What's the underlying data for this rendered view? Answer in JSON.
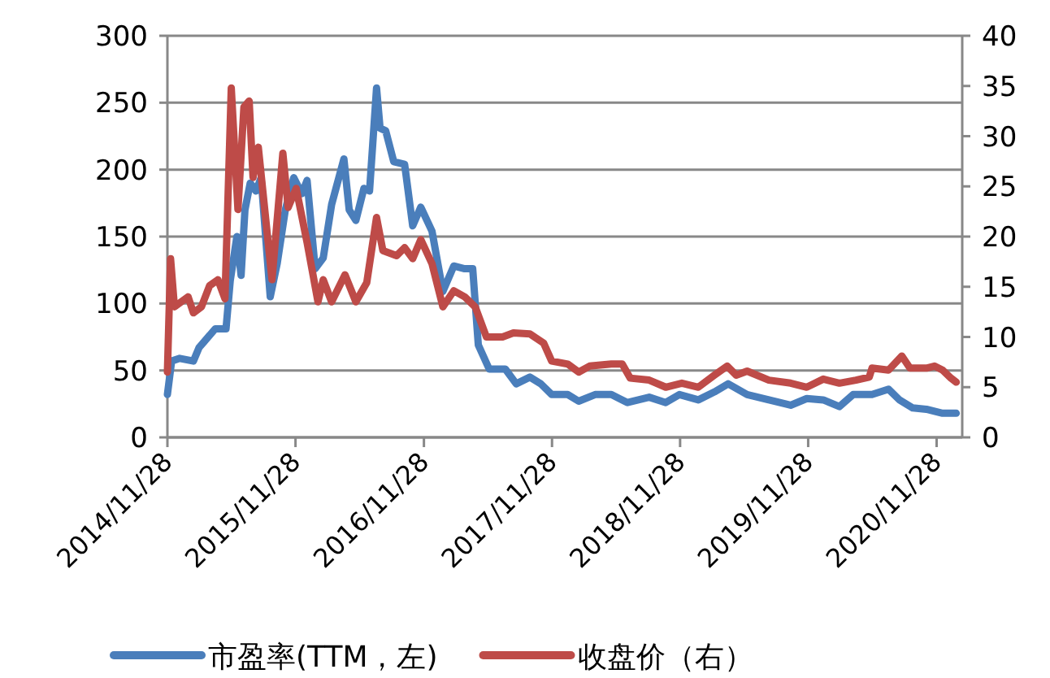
{
  "chart_data": {
    "type": "line",
    "xlim": [
      "2014-11-28",
      "2021-02-09"
    ],
    "xticks": [
      {
        "value": "2014-11-28",
        "label": "2014/11/28"
      },
      {
        "value": "2015-11-28",
        "label": "2015/11/28"
      },
      {
        "value": "2016-11-28",
        "label": "2016/11/28"
      },
      {
        "value": "2017-11-28",
        "label": "2017/11/28"
      },
      {
        "value": "2018-11-28",
        "label": "2018/11/28"
      },
      {
        "value": "2019-11-28",
        "label": "2019/11/28"
      },
      {
        "value": "2020-11-28",
        "label": "2020/11/28"
      }
    ],
    "ylim": [
      0,
      300
    ],
    "yticks": [
      0,
      50,
      100,
      150,
      200,
      250,
      300
    ],
    "y2lim": [
      0,
      40
    ],
    "y2ticks": [
      0,
      5,
      10,
      15,
      20,
      25,
      30,
      35,
      40
    ],
    "grid": "y",
    "legend": "bottom",
    "marker": "none",
    "line_style": "solid",
    "series": [
      {
        "name": "市盈率(TTM，左)",
        "color": "#4a7ebb",
        "x": [
          "2014-11-28",
          "2014-12-10",
          "2015-01-02",
          "2015-02-10",
          "2015-02-26",
          "2015-04-13",
          "2015-05-14",
          "2015-05-26",
          "2015-06-14",
          "2015-06-26",
          "2015-07-07",
          "2015-07-22",
          "2015-08-07",
          "2015-08-22",
          "2015-09-17",
          "2015-10-07",
          "2015-10-30",
          "2015-11-23",
          "2015-12-16",
          "2015-12-31",
          "2016-01-23",
          "2016-02-15",
          "2016-03-10",
          "2016-04-14",
          "2016-04-29",
          "2016-05-18",
          "2016-06-10",
          "2016-06-26",
          "2016-07-16",
          "2016-07-26",
          "2016-08-11",
          "2016-09-03",
          "2016-10-04",
          "2016-10-27",
          "2016-11-19",
          "2016-12-21",
          "2017-01-21",
          "2017-02-21",
          "2017-03-24",
          "2017-04-16",
          "2017-05-02",
          "2017-06-02",
          "2017-07-18",
          "2017-08-18",
          "2017-09-26",
          "2017-10-27",
          "2017-11-27",
          "2018-01-12",
          "2018-02-12",
          "2018-03-31",
          "2018-05-16",
          "2018-07-01",
          "2018-09-01",
          "2018-10-18",
          "2018-11-26",
          "2019-01-19",
          "2019-03-06",
          "2019-04-14",
          "2019-06-07",
          "2019-08-08",
          "2019-10-09",
          "2019-11-24",
          "2020-01-10",
          "2020-02-25",
          "2020-04-04",
          "2020-05-28",
          "2020-07-14",
          "2020-08-14",
          "2020-09-21",
          "2020-10-30",
          "2020-12-15",
          "2021-01-23"
        ],
        "values": [
          32,
          57,
          59,
          57,
          67,
          81,
          81,
          117,
          150,
          121,
          170,
          190,
          184,
          194,
          105,
          130,
          170,
          194,
          182,
          192,
          126,
          134,
          174,
          208,
          170,
          162,
          186,
          184,
          261,
          231,
          229,
          206,
          204,
          158,
          172,
          154,
          109,
          128,
          126,
          126,
          69,
          51,
          51,
          40,
          45,
          40,
          32,
          32,
          27,
          32,
          32,
          26,
          30,
          26,
          32,
          28,
          34,
          40,
          32,
          28,
          24,
          29,
          28,
          23,
          32,
          32,
          36,
          28,
          22,
          21,
          18,
          18
        ]
      },
      {
        "name": "收盘价（右）",
        "color": "#be4b48",
        "axis": "y2",
        "x": [
          "2014-11-28",
          "2014-12-07",
          "2014-12-18",
          "2015-01-26",
          "2015-02-10",
          "2015-03-05",
          "2015-03-28",
          "2015-04-21",
          "2015-05-11",
          "2015-05-29",
          "2015-06-17",
          "2015-07-04",
          "2015-07-19",
          "2015-07-30",
          "2015-08-14",
          "2015-09-22",
          "2015-10-23",
          "2015-11-07",
          "2015-11-30",
          "2015-12-31",
          "2016-01-31",
          "2016-02-15",
          "2016-03-10",
          "2016-04-17",
          "2016-05-18",
          "2016-06-18",
          "2016-07-16",
          "2016-08-03",
          "2016-09-11",
          "2016-10-04",
          "2016-10-27",
          "2016-11-19",
          "2016-12-21",
          "2017-01-21",
          "2017-02-21",
          "2017-03-24",
          "2017-04-23",
          "2017-05-25",
          "2017-07-10",
          "2017-08-10",
          "2017-09-26",
          "2017-11-04",
          "2017-11-27",
          "2018-01-12",
          "2018-02-12",
          "2018-03-15",
          "2018-05-16",
          "2018-06-16",
          "2018-07-09",
          "2018-09-01",
          "2018-10-18",
          "2018-12-03",
          "2019-01-19",
          "2019-03-06",
          "2019-04-11",
          "2019-05-07",
          "2019-06-07",
          "2019-08-08",
          "2019-10-09",
          "2019-11-24",
          "2020-01-10",
          "2020-02-25",
          "2020-04-12",
          "2020-05-20",
          "2020-05-28",
          "2020-07-14",
          "2020-08-21",
          "2020-09-13",
          "2020-10-30",
          "2020-11-22",
          "2020-12-15",
          "2021-01-08",
          "2021-01-23"
        ],
        "values": [
          6.5,
          17.8,
          13,
          14,
          12.4,
          13,
          15.1,
          15.7,
          13.8,
          34.8,
          22.7,
          32.9,
          33.5,
          25.9,
          28.9,
          15.7,
          28.3,
          22.9,
          24.8,
          19.4,
          13.5,
          15.7,
          13.5,
          16.2,
          13.5,
          15.4,
          21.9,
          18.6,
          18.1,
          18.9,
          17.8,
          19.7,
          17.3,
          13,
          14.6,
          14,
          13,
          10,
          10,
          10.4,
          10.3,
          9.4,
          7.6,
          7.3,
          6.5,
          7.1,
          7.3,
          7.3,
          5.9,
          5.7,
          5,
          5.4,
          5,
          6.2,
          7.1,
          6.2,
          6.6,
          5.7,
          5.4,
          5,
          5.8,
          5.4,
          5.7,
          6,
          6.9,
          6.7,
          8.1,
          6.9,
          6.9,
          7.1,
          6.7,
          5.9,
          5.5
        ]
      }
    ]
  }
}
